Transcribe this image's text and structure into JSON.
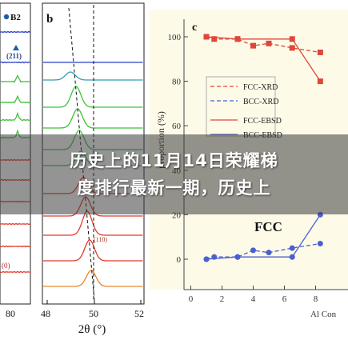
{
  "colors": {
    "panel_c_bg": "#fdfbe8",
    "teal": "#2f9fb0",
    "green": "#3fc23a",
    "blue": "#2a3ec8",
    "red": "#e43b2c",
    "orange": "#e8862c",
    "fcc_red": "#e0463a",
    "bcc_blue": "#4a5fd0"
  },
  "panel_a": {
    "legend_b2": "B2",
    "legend_211": "(211)",
    "bottom_label": "(0)",
    "xticks": [
      "80"
    ]
  },
  "panel_b": {
    "label": "b",
    "xlabel": "2θ (°)",
    "xticks": [
      "48",
      "50",
      "52"
    ],
    "peak_label": "(110)"
  },
  "banner": {
    "line1": "历史上的11月14日荣耀梯",
    "line2": "度排行最新一期，历史上"
  },
  "chart_data": {
    "type": "line",
    "label": "c",
    "xlabel": "Al Con",
    "ylabel": "proportion (%)",
    "xticks": [
      "0",
      "2",
      "4",
      "6",
      "8"
    ],
    "yticks": [
      "0",
      "20",
      "40",
      "60",
      "80",
      "100"
    ],
    "xlim": [
      0,
      8.5
    ],
    "ylim": [
      0,
      106
    ],
    "annotation": "FCC",
    "legend_position": "left-middle",
    "series": [
      {
        "name": "FCC-XRD",
        "style": "dashed",
        "color": "#e0463a",
        "marker": "square",
        "x": [
          1,
          1.5,
          3,
          4,
          5,
          6.5,
          8.3
        ],
        "y": [
          100,
          99,
          99,
          96,
          97,
          95,
          93
        ]
      },
      {
        "name": "BCC-XRD",
        "style": "dashed",
        "color": "#4a5fd0",
        "marker": "circle",
        "x": [
          1,
          1.5,
          3,
          4,
          5,
          6.5,
          8.3
        ],
        "y": [
          0,
          1,
          1,
          4,
          3,
          5,
          7
        ]
      },
      {
        "name": "FCC-EBSD",
        "style": "solid",
        "color": "#e0463a",
        "marker": "square",
        "x": [
          1,
          3,
          6.5,
          8.3
        ],
        "y": [
          100,
          99,
          99,
          80
        ]
      },
      {
        "name": "BCC-EBSD",
        "style": "solid",
        "color": "#4a5fd0",
        "marker": "circle",
        "x": [
          1,
          3,
          6.5,
          8.3
        ],
        "y": [
          0,
          1,
          1,
          20
        ]
      }
    ]
  }
}
